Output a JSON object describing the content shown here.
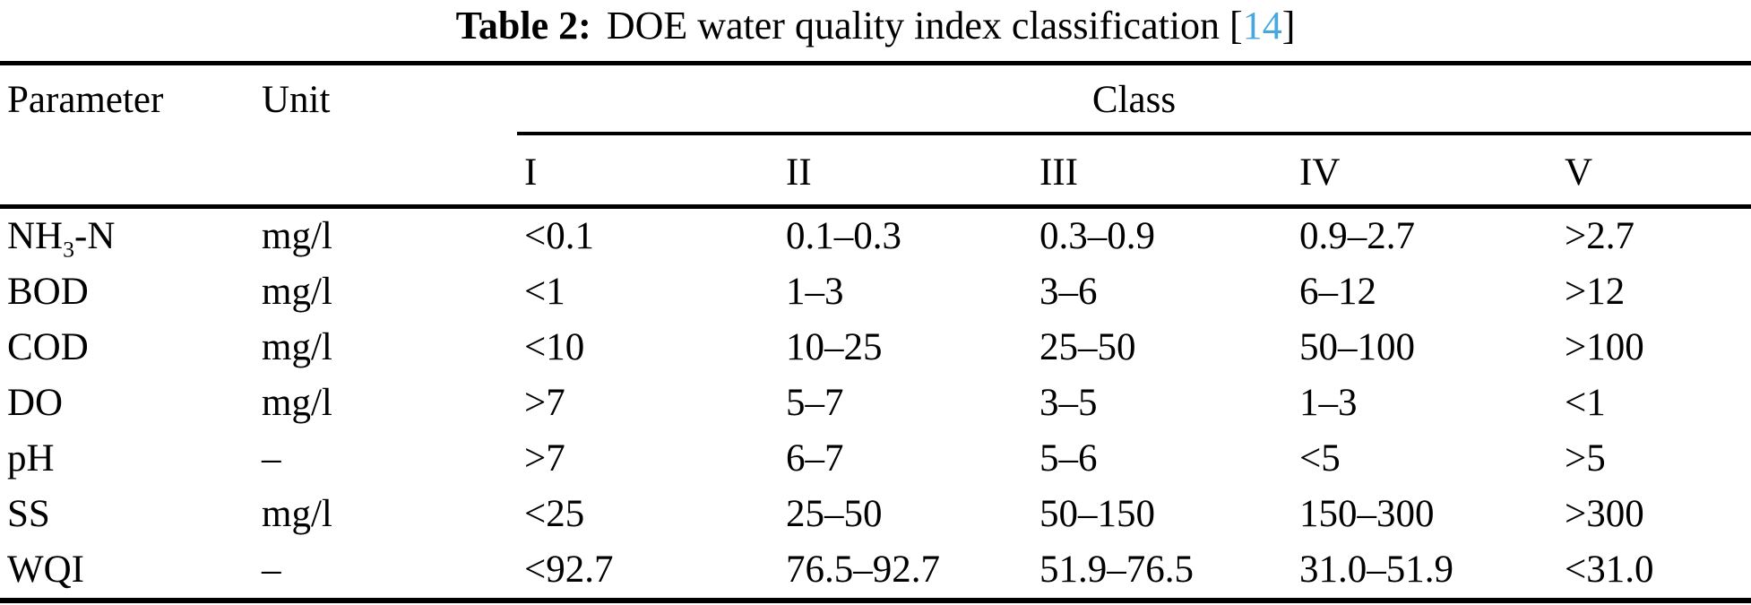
{
  "title": {
    "label": "Table 2:",
    "text": "DOE water quality index classification",
    "citation_open": "[",
    "citation": "14",
    "citation_close": "]"
  },
  "table": {
    "headers": {
      "parameter": "Parameter",
      "unit": "Unit",
      "class_group": "Class",
      "classes": [
        "I",
        "II",
        "III",
        "IV",
        "V"
      ]
    },
    "rows": [
      {
        "parameter": {
          "pre": "NH",
          "sub": "3",
          "post": "-N"
        },
        "unit": "mg/l",
        "values": [
          "<0.1",
          "0.1–0.3",
          "0.3–0.9",
          "0.9–2.7",
          ">2.7"
        ]
      },
      {
        "parameter": "BOD",
        "unit": "mg/l",
        "values": [
          "<1",
          "1–3",
          "3–6",
          "6–12",
          ">12"
        ]
      },
      {
        "parameter": "COD",
        "unit": "mg/l",
        "values": [
          "<10",
          "10–25",
          "25–50",
          "50–100",
          ">100"
        ]
      },
      {
        "parameter": "DO",
        "unit": "mg/l",
        "values": [
          ">7",
          "5–7",
          "3–5",
          "1–3",
          "<1"
        ]
      },
      {
        "parameter": "pH",
        "unit": "–",
        "values": [
          ">7",
          "6–7",
          "5–6",
          "<5",
          ">5"
        ]
      },
      {
        "parameter": "SS",
        "unit": "mg/l",
        "values": [
          "<25",
          "25–50",
          "50–150",
          "150–300",
          ">300"
        ]
      },
      {
        "parameter": "WQI",
        "unit": "–",
        "values": [
          "<92.7",
          "76.5–92.7",
          "51.9–76.5",
          "31.0–51.9",
          "<31.0"
        ]
      }
    ]
  },
  "colors": {
    "background": "#ffffff",
    "text": "#000000",
    "rule": "#000000",
    "citation": "#47a7df"
  }
}
